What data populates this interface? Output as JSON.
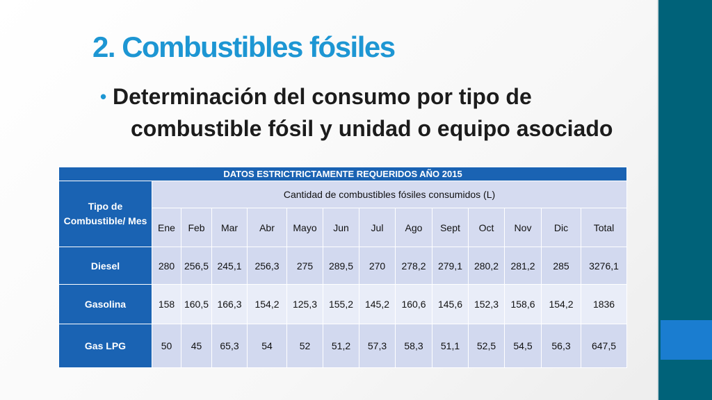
{
  "slide": {
    "title": "2. Combustibles fósiles",
    "bullet": "Determinación del consumo por tipo de combustible fósil y unidad o equipo asociado"
  },
  "table": {
    "caption": "DATOS ESTRICTRICTAMENTE REQUERIDOS AÑO 2015",
    "corner_header": "Tipo de Combustible/ Mes",
    "group_header": "Cantidad de combustibles fósiles consumidos (L)",
    "months": [
      "Ene",
      "Feb",
      "Mar",
      "Abr",
      "Mayo",
      "Jun",
      "Jul",
      "Ago",
      "Sept",
      "Oct",
      "Nov",
      "Dic",
      "Total"
    ],
    "rows": [
      {
        "label": "Diesel",
        "values": [
          "280",
          "256,5",
          "245,1",
          "256,3",
          "275",
          "289,5",
          "270",
          "278,2",
          "279,1",
          "280,2",
          "281,2",
          "285",
          "3276,1"
        ]
      },
      {
        "label": "Gasolina",
        "values": [
          "158",
          "160,5",
          "166,3",
          "154,2",
          "125,3",
          "155,2",
          "145,2",
          "160,6",
          "145,6",
          "152,3",
          "158,6",
          "154,2",
          "1836"
        ]
      },
      {
        "label": "Gas LPG",
        "values": [
          "50",
          "45",
          "65,3",
          "54",
          "52",
          "51,2",
          "57,3",
          "58,3",
          "51,1",
          "52,5",
          "54,5",
          "56,3",
          "647,5"
        ]
      }
    ]
  },
  "colors": {
    "title": "#1d96d3",
    "header_blue": "#1a63b3",
    "side_bar": "#006279",
    "side_accent": "#1a7dd0"
  }
}
